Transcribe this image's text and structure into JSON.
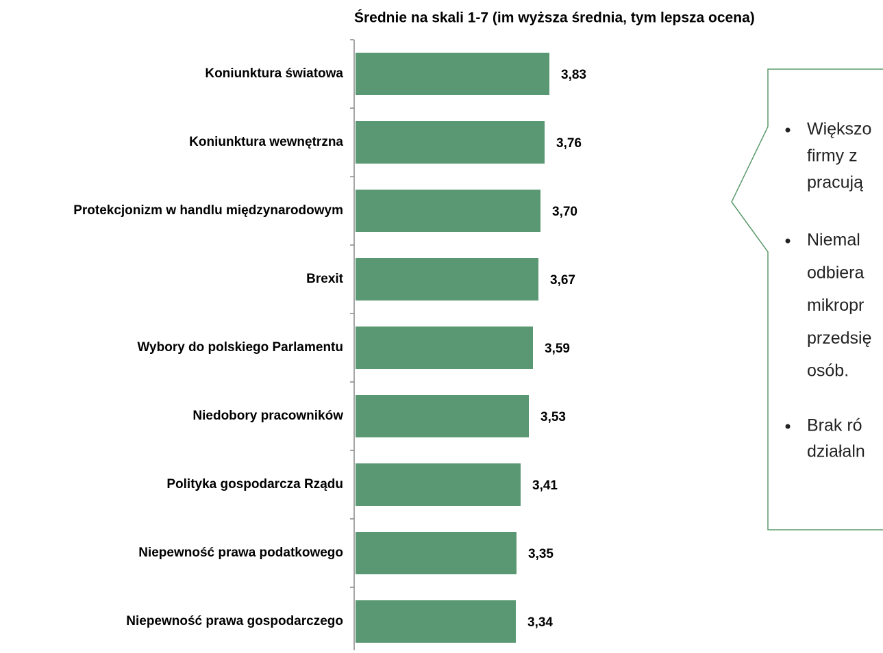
{
  "chart_data": {
    "type": "bar",
    "orientation": "horizontal",
    "title": "Średnie na skali 1-7 (im wyższa średnia, tym lepsza ocena)",
    "categories": [
      "Koniunktura światowa",
      "Koniunktura wewnętrzna",
      "Protekcjonizm w handlu międzynarodowym",
      "Brexit",
      "Wybory do polskiego Parlamentu",
      "Niedobory pracowników",
      "Polityka gospodarcza Rządu",
      "Niepewność prawa podatkowego",
      "Niepewność prawa gospodarczego"
    ],
    "values": [
      3.83,
      3.76,
      3.7,
      3.67,
      3.59,
      3.53,
      3.41,
      3.35,
      3.34
    ],
    "value_labels": [
      "3,83",
      "3,76",
      "3,70",
      "3,67",
      "3,59",
      "3,53",
      "3,41",
      "3,35",
      "3,34"
    ],
    "color": "#5a9873",
    "xlim": [
      1,
      7
    ]
  },
  "callout": {
    "color": "#5a9a6a",
    "bullets": [
      [
        "Większo",
        "firmy z",
        "pracują"
      ],
      [
        "Niemal",
        "odbiera",
        "mikropr",
        "przedsię",
        "osób."
      ],
      [
        "Brak ró",
        "działaln"
      ]
    ]
  }
}
